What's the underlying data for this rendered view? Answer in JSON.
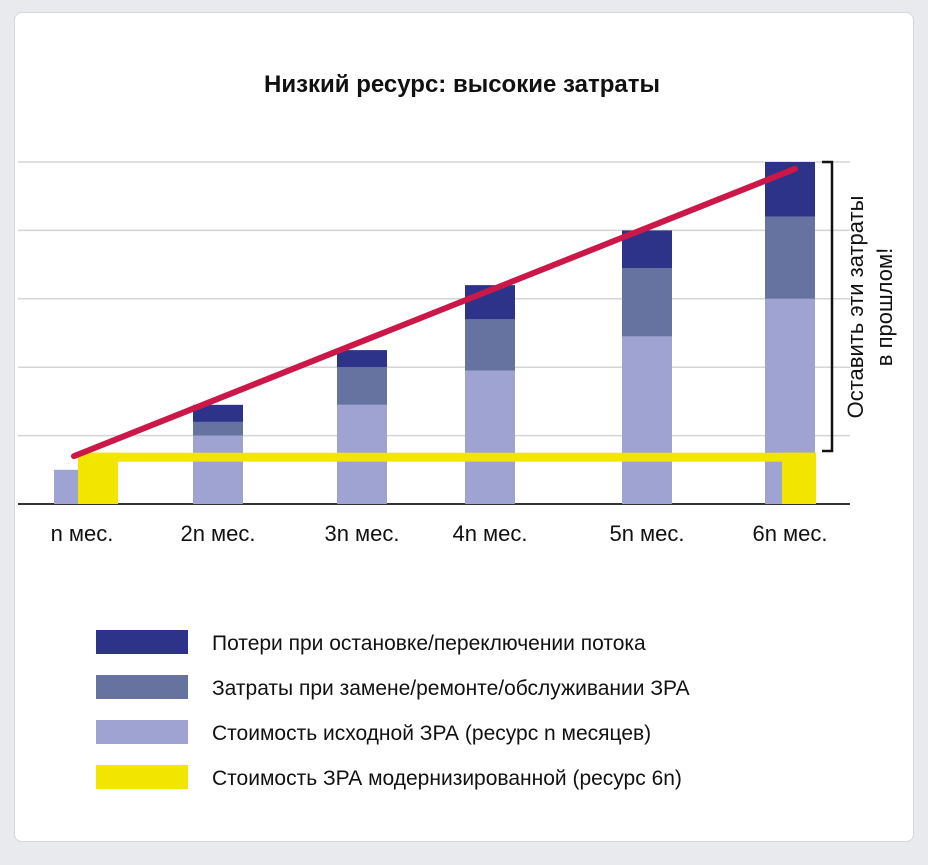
{
  "chart_data": {
    "type": "bar",
    "title": "Низкий ресурс: высокие затраты",
    "categories": [
      "n мес.",
      "2n мес.",
      "3n мес.",
      "4n мес.",
      "5n мес.",
      "6n мес."
    ],
    "ylim": [
      0,
      5
    ],
    "grid": true,
    "series": [
      {
        "name": "Стоимость исходной ЗРА (ресурс n месяцев)",
        "values": [
          0.5,
          1.0,
          1.45,
          1.95,
          2.45,
          3.0
        ],
        "color": "#9fa3d1"
      },
      {
        "name": "Затраты при замене/ремонте/обслуживании ЗРА",
        "values": [
          0,
          0.2,
          0.55,
          0.75,
          1.0,
          1.2
        ],
        "color": "#6673a0"
      },
      {
        "name": "Потери при остановке/переключении потока",
        "values": [
          0,
          0.25,
          0.25,
          0.5,
          0.55,
          0.8
        ],
        "color": "#2d3388"
      }
    ],
    "modernized": {
      "name": "Стоимость ЗРА модернизированной (ресурс 6n)",
      "value": 0.75,
      "color": "#f2e600"
    },
    "trend": {
      "color": "#cc1848",
      "start": 0.7,
      "end": 4.9
    },
    "side_annotation": [
      "Оставить эти затраты",
      "в прошлом!"
    ]
  }
}
